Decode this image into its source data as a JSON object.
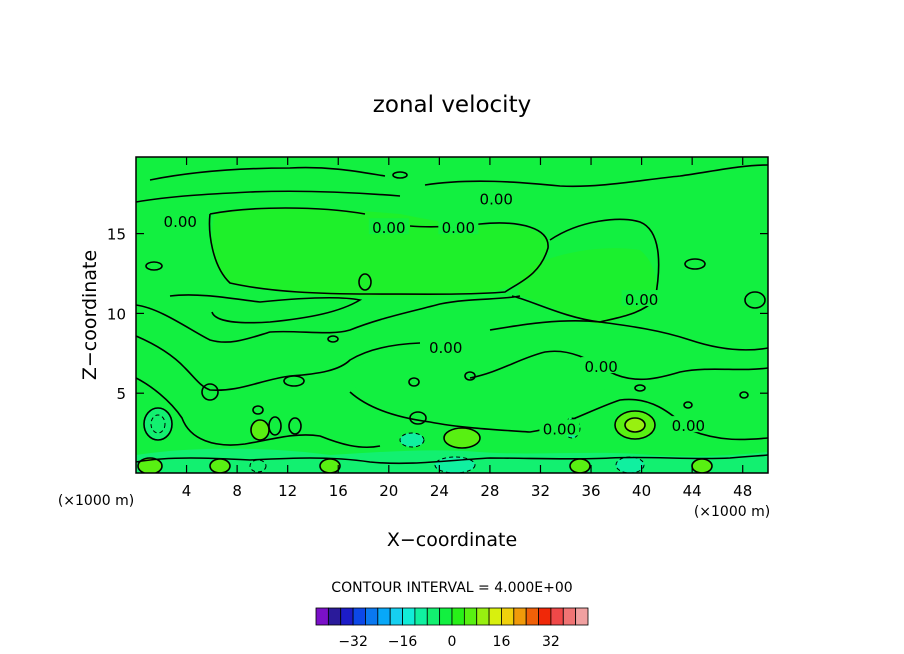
{
  "chart_data": {
    "type": "heatmap",
    "title": "zonal velocity",
    "xlabel": "X−coordinate",
    "ylabel": "Z−coordinate",
    "x_unit": "(×1000 m)",
    "xlim": [
      0,
      50
    ],
    "ylim": [
      0,
      19.8
    ],
    "x_ticks": [
      4,
      8,
      12,
      16,
      20,
      24,
      28,
      32,
      36,
      40,
      44,
      48
    ],
    "x_tick_labels": [
      "4",
      "8",
      "12",
      "16",
      "20",
      "24",
      "28",
      "32",
      "36",
      "40",
      "44",
      "48"
    ],
    "y_ticks": [
      5,
      10,
      15
    ],
    "y_tick_labels": [
      "5",
      "10",
      "15"
    ],
    "contour_interval_label": "CONTOUR INTERVAL = 4.000E+00",
    "contour_labels": [
      {
        "x": 3.5,
        "y": 15.8,
        "text": "0.00"
      },
      {
        "x": 20.0,
        "y": 15.4,
        "text": "0.00"
      },
      {
        "x": 25.5,
        "y": 15.4,
        "text": "0.00"
      },
      {
        "x": 28.5,
        "y": 17.2,
        "text": "0.00"
      },
      {
        "x": 24.5,
        "y": 7.9,
        "text": "0.00"
      },
      {
        "x": 36.8,
        "y": 6.7,
        "text": "0.00"
      },
      {
        "x": 40.0,
        "y": 10.9,
        "text": "0.00"
      },
      {
        "x": 33.5,
        "y": 2.8,
        "text": "0.00"
      },
      {
        "x": 43.7,
        "y": 3.0,
        "text": "0.00"
      }
    ],
    "colorbar": {
      "tick_labels": [
        "−32",
        "−16",
        "0",
        "16",
        "32"
      ],
      "tick_values": [
        -32,
        -16,
        0,
        16,
        32
      ],
      "colors": [
        "#7a10c8",
        "#2a1a9a",
        "#1c1cc8",
        "#0c48e8",
        "#0a78f0",
        "#08a8f8",
        "#16d0f0",
        "#12ecd8",
        "#10f0a0",
        "#12f070",
        "#12f040",
        "#28f018",
        "#58f012",
        "#98f010",
        "#d8f00e",
        "#f0d00c",
        "#f09a0a",
        "#f06008",
        "#f02808",
        "#f04848",
        "#f07474",
        "#f0a0a0"
      ]
    },
    "background_level_color": "#12f040",
    "contour_levels": [
      {
        "value": 4,
        "color": "#28f018"
      },
      {
        "value": 8,
        "color": "#58f012"
      },
      {
        "value": -4,
        "color": "#12f070"
      },
      {
        "value": -8,
        "color": "#10f0a0"
      }
    ]
  }
}
